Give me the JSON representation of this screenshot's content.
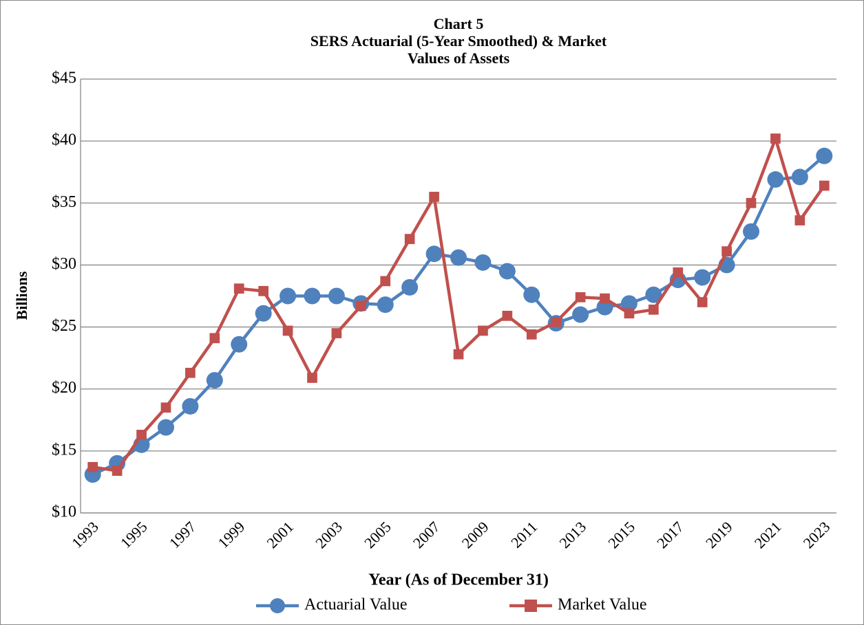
{
  "chart_data": {
    "type": "line",
    "title": [
      "Chart 5",
      "SERS Actuarial (5-Year Smoothed)  & Market",
      "Values of Assets"
    ],
    "x_label": "Year (As of December 31)",
    "y_label": "Billions",
    "categories": [
      "1993",
      null,
      "1995",
      null,
      "1997",
      null,
      "1999",
      null,
      "2001",
      null,
      "2003",
      null,
      "2005",
      null,
      "2007",
      null,
      "2009",
      null,
      "2011",
      null,
      "2013",
      null,
      "2015",
      null,
      "2017",
      null,
      "2019",
      null,
      "2021",
      null,
      "2023"
    ],
    "series": [
      {
        "name": "Actuarial Value",
        "color": "#4f81bd",
        "marker": "circle",
        "values": [
          13.1,
          14.0,
          15.5,
          16.9,
          18.6,
          20.7,
          23.6,
          26.1,
          27.5,
          27.5,
          27.5,
          26.9,
          26.8,
          28.2,
          30.9,
          30.6,
          30.2,
          29.5,
          27.6,
          25.3,
          26.0,
          26.6,
          26.9,
          27.6,
          28.8,
          29.0,
          30.0,
          32.7,
          36.9,
          37.1,
          38.8
        ]
      },
      {
        "name": "Market Value",
        "color": "#c0504d",
        "marker": "square",
        "values": [
          13.7,
          13.4,
          16.3,
          18.5,
          21.3,
          24.1,
          28.1,
          27.9,
          24.7,
          20.9,
          24.5,
          26.7,
          28.7,
          32.1,
          35.5,
          22.8,
          24.7,
          25.9,
          24.4,
          25.4,
          27.4,
          27.3,
          26.1,
          26.4,
          29.4,
          27.0,
          31.1,
          35.0,
          40.2,
          33.6,
          36.4
        ]
      }
    ],
    "ylim": [
      10,
      45
    ],
    "yticks": [
      {
        "value": 10,
        "label": "$10"
      },
      {
        "value": 15,
        "label": "$15"
      },
      {
        "value": 20,
        "label": "$20"
      },
      {
        "value": 25,
        "label": "$25"
      },
      {
        "value": 30,
        "label": "$30"
      },
      {
        "value": 35,
        "label": "$35"
      },
      {
        "value": 40,
        "label": "$40"
      },
      {
        "value": 45,
        "label": "$45"
      }
    ],
    "grid": true,
    "legend": "bottom"
  }
}
